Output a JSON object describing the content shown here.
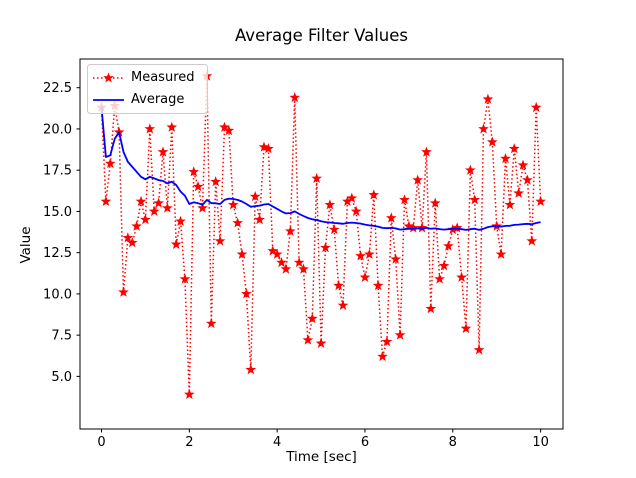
{
  "title": "Average Filter Values",
  "xlabel": "Time [sec]",
  "ylabel": "Value",
  "legend": {
    "items": [
      {
        "label": "Measured",
        "color": "#ff0000",
        "style": "dotted-star"
      },
      {
        "label": "Average",
        "color": "#0000ff",
        "style": "solid"
      }
    ]
  },
  "chart_data": {
    "type": "line",
    "title": "Average Filter Values",
    "xlabel": "Time [sec]",
    "ylabel": "Value",
    "x_tick_labels": [
      "0",
      "2",
      "4",
      "6",
      "8",
      "10"
    ],
    "x_tick_values": [
      0,
      2,
      4,
      6,
      8,
      10
    ],
    "y_tick_labels": [
      "5.0",
      "7.5",
      "10.0",
      "12.5",
      "15.0",
      "17.5",
      "20.0",
      "22.5"
    ],
    "y_tick_values": [
      5.0,
      7.5,
      10.0,
      12.5,
      15.0,
      17.5,
      20.0,
      22.5
    ],
    "xlim": [
      -0.49,
      10.51
    ],
    "ylim": [
      1.81,
      24.24
    ],
    "grid": false,
    "legend_position": "upper-left",
    "x_start": 0.0,
    "x_step": 0.1,
    "series": [
      {
        "name": "Measured",
        "color": "#ff0000",
        "linestyle": "dotted",
        "marker": "star",
        "values": [
          21.3,
          15.6,
          17.9,
          21.4,
          19.8,
          10.1,
          13.4,
          13.1,
          14.1,
          15.6,
          14.5,
          20.0,
          15.0,
          15.5,
          18.6,
          15.2,
          20.1,
          13.0,
          14.4,
          10.9,
          3.9,
          17.4,
          16.5,
          15.2,
          23.2,
          8.2,
          16.8,
          13.2,
          20.1,
          19.9,
          15.4,
          14.3,
          12.4,
          10.0,
          5.4,
          15.9,
          14.5,
          18.9,
          18.8,
          12.6,
          12.4,
          11.9,
          11.5,
          13.8,
          21.9,
          11.9,
          11.5,
          7.2,
          8.5,
          17.0,
          7.0,
          12.8,
          15.4,
          13.9,
          10.5,
          9.3,
          15.6,
          15.8,
          15.0,
          12.3,
          11.0,
          12.4,
          16.0,
          10.5,
          6.2,
          7.1,
          14.6,
          12.1,
          7.5,
          15.7,
          14.1,
          14.0,
          16.9,
          14.0,
          18.6,
          9.1,
          15.5,
          10.9,
          11.7,
          12.9,
          13.9,
          14.0,
          11.0,
          7.9,
          17.5,
          15.7,
          6.6,
          20.0,
          21.8,
          19.2,
          14.1,
          12.4,
          18.2,
          15.4,
          18.8,
          16.1,
          17.8,
          16.9,
          13.2,
          21.3,
          15.6
        ]
      },
      {
        "name": "Average",
        "color": "#0000ff",
        "linestyle": "solid",
        "marker": "none",
        "values": [
          21.3,
          18.3,
          18.4,
          19.4,
          19.8,
          18.6,
          18.0,
          17.7,
          17.4,
          17.1,
          16.95,
          17.1,
          17.0,
          16.9,
          16.85,
          16.7,
          16.8,
          16.6,
          16.2,
          15.95,
          15.45,
          15.55,
          15.5,
          15.4,
          15.7,
          15.5,
          15.5,
          15.45,
          15.7,
          15.78,
          15.75,
          15.7,
          15.6,
          15.45,
          15.28,
          15.32,
          15.35,
          15.42,
          15.45,
          15.3,
          15.15,
          15.0,
          14.88,
          14.9,
          15.0,
          14.85,
          14.72,
          14.6,
          14.52,
          14.48,
          14.4,
          14.35,
          14.33,
          14.3,
          14.28,
          14.25,
          14.3,
          14.32,
          14.3,
          14.26,
          14.2,
          14.15,
          14.12,
          14.08,
          14.0,
          13.98,
          14.0,
          13.97,
          13.9,
          13.93,
          13.95,
          13.94,
          13.97,
          13.95,
          14.0,
          13.95,
          13.97,
          13.93,
          13.9,
          13.92,
          13.95,
          13.96,
          13.92,
          13.88,
          13.92,
          13.95,
          13.88,
          13.95,
          14.05,
          14.1,
          14.1,
          14.08,
          14.12,
          14.13,
          14.18,
          14.2,
          14.23,
          14.25,
          14.22,
          14.3,
          14.35
        ]
      }
    ]
  }
}
